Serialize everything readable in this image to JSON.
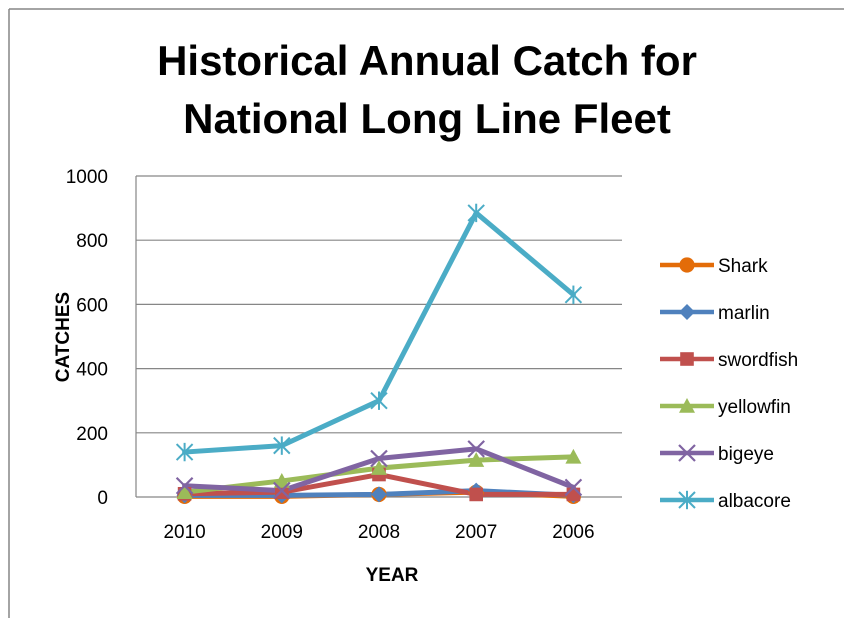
{
  "chart_data": {
    "type": "line",
    "title_lines": [
      "Historical Annual Catch for",
      "National Long Line Fleet"
    ],
    "xlabel": "YEAR",
    "ylabel": "CATCHES",
    "categories": [
      "2010",
      "2009",
      "2008",
      "2007",
      "2006"
    ],
    "ylim": [
      0,
      1000
    ],
    "yticks": [
      0,
      200,
      400,
      600,
      800,
      1000
    ],
    "grid": true,
    "legend_position": "right",
    "series": [
      {
        "name": "Shark",
        "color": "#E36C09",
        "marker": "circle",
        "values": [
          2,
          2,
          8,
          15,
          2
        ]
      },
      {
        "name": "marlin",
        "color": "#4F81BD",
        "marker": "diamond",
        "values": [
          5,
          5,
          8,
          20,
          5
        ]
      },
      {
        "name": "swordfish",
        "color": "#C0504D",
        "marker": "square",
        "values": [
          10,
          15,
          70,
          8,
          8
        ]
      },
      {
        "name": "yellowfin",
        "color": "#9BBB59",
        "marker": "triangle",
        "values": [
          15,
          50,
          90,
          115,
          125
        ]
      },
      {
        "name": "bigeye",
        "color": "#8064A2",
        "marker": "x",
        "values": [
          35,
          20,
          120,
          150,
          30
        ]
      },
      {
        "name": "albacore",
        "color": "#4BACC6",
        "marker": "star",
        "values": [
          140,
          160,
          300,
          885,
          630
        ]
      }
    ]
  }
}
